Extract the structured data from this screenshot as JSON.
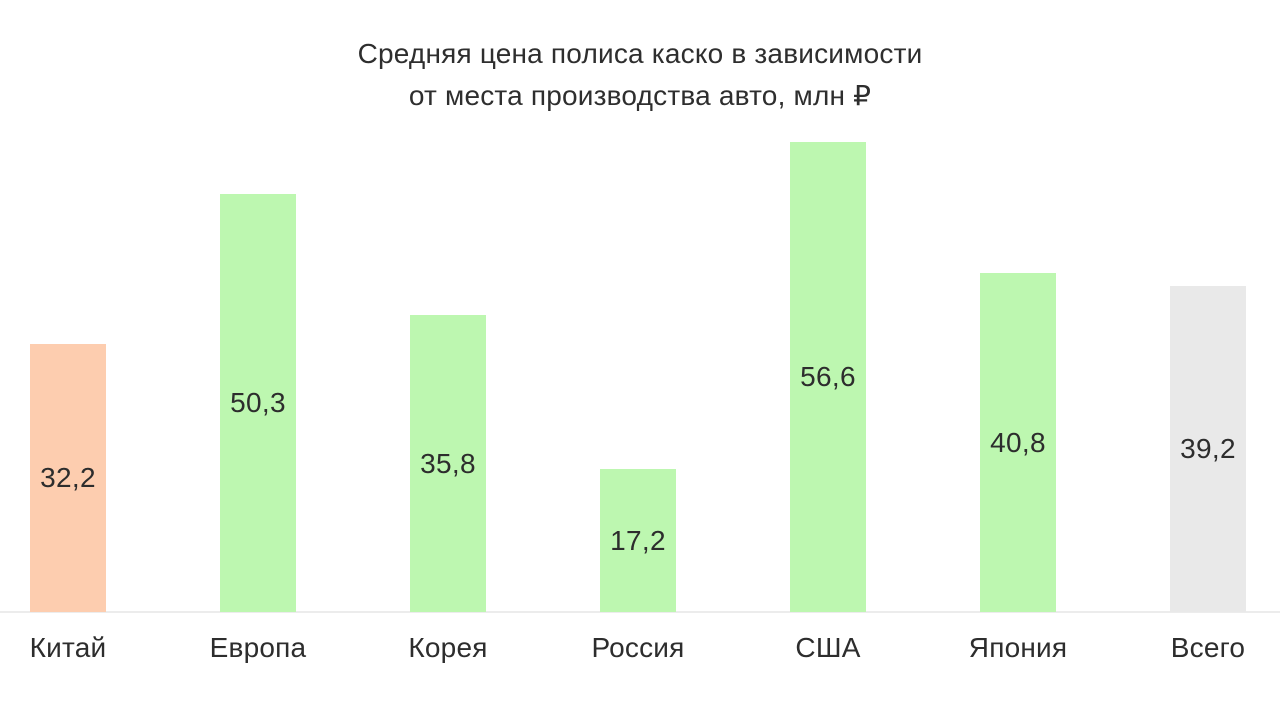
{
  "title": {
    "line1": "Средняя цена полиса каско в зависимости",
    "line2": "от места производства авто, млн ₽"
  },
  "chart_data": {
    "type": "bar",
    "title": "Средняя цена полиса каско в зависимости от места производства авто, млн ₽",
    "categories": [
      "Китай",
      "Европа",
      "Корея",
      "Россия",
      "США",
      "Япония",
      "Всего"
    ],
    "values": [
      32.2,
      50.3,
      35.8,
      17.2,
      56.6,
      40.8,
      39.2
    ],
    "value_labels": [
      "32,2",
      "50,3",
      "35,8",
      "17,2",
      "56,6",
      "40,8",
      "39,2"
    ],
    "bar_names": [
      "china",
      "europe",
      "korea",
      "russia",
      "usa",
      "japan",
      "total"
    ],
    "bar_colors": [
      "#FDCDAF",
      "#BDF7B0",
      "#BDF7B0",
      "#BDF7B0",
      "#BDF7B0",
      "#BDF7B0",
      "#E9E9E9"
    ],
    "xlabel": "",
    "ylabel": "",
    "ylim": [
      0,
      56.6
    ],
    "grid": false,
    "legend": false,
    "value_label_position": "inside-center",
    "baseline_color": "#ECECEC",
    "text_color": "#2D2D2D",
    "title_color": "#2E2E2E",
    "background_color": "#FFFFFF"
  }
}
